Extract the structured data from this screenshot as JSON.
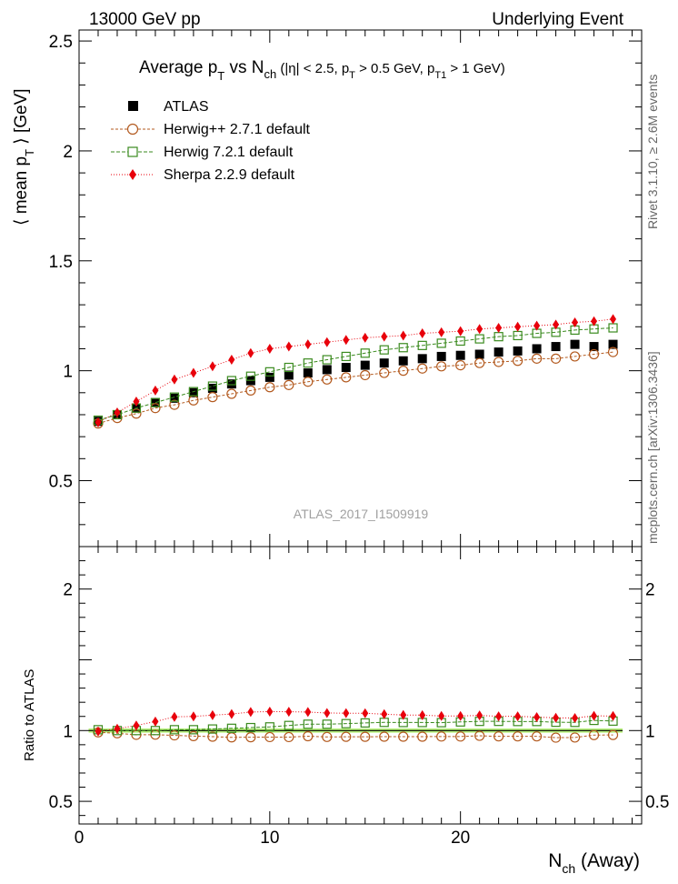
{
  "header": {
    "energy": "13000 GeV pp",
    "category": "Underlying Event"
  },
  "side_labels": {
    "rivet": "Rivet 3.1.10, ≥ 2.6M events",
    "mcplots": "mcplots.cern.ch [arXiv:1306.3436]"
  },
  "watermark": "ATLAS_2017_I1509919",
  "title": {
    "main": "Average p",
    "main_sub": "T",
    "vs": " vs N",
    "vs_sub": "ch",
    "cuts_a": " (|η| < 2.5, p",
    "cuts_a_sub": "T",
    "cuts_b": " > 0.5 GeV, p",
    "cuts_b_sub": "T1",
    "cuts_c": " > 1 GeV)"
  },
  "ylabel_main": {
    "a": "⟨ mean p",
    "sub": "T",
    "b": " ⟩ [GeV]"
  },
  "ylabel_ratio": "Ratio to ATLAS",
  "xlabel": {
    "a": "N",
    "sub": "ch",
    "b": " (Away)"
  },
  "colors": {
    "atlas": "#000000",
    "herwigpp": "#b35a1f",
    "herwig7": "#3a8a1e",
    "sherpa": "#e8000b",
    "band": "#b6f07a"
  },
  "chart_data": [
    {
      "type": "scatter",
      "panel": "main",
      "title": "Average pT vs Nch (|η| < 2.5, pT > 0.5 GeV, pT1 > 1 GeV)",
      "xlabel": "Nch (Away)",
      "ylabel": "⟨ mean pT ⟩ [GeV]",
      "xlim": [
        0,
        29.5
      ],
      "ylim": [
        0.2,
        2.55
      ],
      "x_ticks": [
        "0",
        "10",
        "20"
      ],
      "y_ticks": [
        "0.5",
        "1",
        "1.5",
        "2",
        "2.5"
      ],
      "x": [
        1,
        2,
        3,
        4,
        5,
        6,
        7,
        8,
        9,
        10,
        11,
        12,
        13,
        14,
        15,
        16,
        17,
        18,
        19,
        20,
        21,
        22,
        23,
        24,
        25,
        26,
        27,
        28
      ],
      "legend_position": "top-left",
      "series": [
        {
          "name": "ATLAS",
          "key": "atlas",
          "marker": "square",
          "values": [
            0.77,
            0.8,
            0.83,
            0.855,
            0.875,
            0.9,
            0.92,
            0.94,
            0.955,
            0.97,
            0.98,
            0.99,
            1.005,
            1.015,
            1.025,
            1.035,
            1.045,
            1.055,
            1.065,
            1.07,
            1.075,
            1.085,
            1.09,
            1.1,
            1.11,
            1.12,
            1.11,
            1.12
          ]
        },
        {
          "name": "Herwig++ 2.7.1 default",
          "key": "herwigpp",
          "marker": "open-circle",
          "values": [
            0.76,
            0.785,
            0.805,
            0.83,
            0.845,
            0.865,
            0.88,
            0.895,
            0.91,
            0.925,
            0.935,
            0.95,
            0.96,
            0.97,
            0.98,
            0.99,
            1.0,
            1.01,
            1.02,
            1.025,
            1.035,
            1.04,
            1.045,
            1.055,
            1.055,
            1.065,
            1.075,
            1.085
          ]
        },
        {
          "name": "Herwig 7.2.1 default",
          "key": "herwig7",
          "marker": "open-square",
          "values": [
            0.775,
            0.8,
            0.83,
            0.855,
            0.88,
            0.905,
            0.93,
            0.955,
            0.975,
            0.995,
            1.015,
            1.035,
            1.05,
            1.065,
            1.08,
            1.095,
            1.105,
            1.115,
            1.125,
            1.135,
            1.145,
            1.155,
            1.16,
            1.17,
            1.175,
            1.185,
            1.19,
            1.195
          ]
        },
        {
          "name": "Sherpa 2.2.9 default",
          "key": "sherpa",
          "marker": "diamond",
          "values": [
            0.765,
            0.81,
            0.86,
            0.91,
            0.96,
            0.99,
            1.02,
            1.05,
            1.08,
            1.1,
            1.11,
            1.12,
            1.13,
            1.14,
            1.15,
            1.155,
            1.16,
            1.17,
            1.175,
            1.18,
            1.19,
            1.195,
            1.2,
            1.205,
            1.21,
            1.22,
            1.225,
            1.235
          ]
        }
      ]
    },
    {
      "type": "scatter",
      "panel": "ratio",
      "ylabel": "Ratio to ATLAS",
      "xlim": [
        0,
        29.5
      ],
      "ylim": [
        0.34,
        2.3
      ],
      "x_ticks": [
        "0",
        "10",
        "20"
      ],
      "y_ticks": [
        "0.5",
        "1",
        "2"
      ],
      "x": [
        1,
        2,
        3,
        4,
        5,
        6,
        7,
        8,
        9,
        10,
        11,
        12,
        13,
        14,
        15,
        16,
        17,
        18,
        19,
        20,
        21,
        22,
        23,
        24,
        25,
        26,
        27,
        28
      ],
      "reference_band": [
        0.985,
        1.015
      ],
      "series": [
        {
          "name": "Herwig++ 2.7.1 default",
          "key": "herwigpp",
          "marker": "open-circle",
          "values": [
            0.987,
            0.981,
            0.97,
            0.971,
            0.966,
            0.961,
            0.957,
            0.952,
            0.953,
            0.954,
            0.954,
            0.96,
            0.955,
            0.956,
            0.956,
            0.957,
            0.957,
            0.957,
            0.958,
            0.958,
            0.963,
            0.959,
            0.959,
            0.959,
            0.95,
            0.951,
            0.968,
            0.969
          ]
        },
        {
          "name": "Herwig 7.2.1 default",
          "key": "herwig7",
          "marker": "open-square",
          "values": [
            1.006,
            1.0,
            1.0,
            1.0,
            1.006,
            1.006,
            1.011,
            1.016,
            1.021,
            1.026,
            1.036,
            1.045,
            1.045,
            1.049,
            1.054,
            1.058,
            1.057,
            1.057,
            1.056,
            1.061,
            1.065,
            1.065,
            1.064,
            1.064,
            1.059,
            1.058,
            1.072,
            1.067
          ]
        },
        {
          "name": "Sherpa 2.2.9 default",
          "key": "sherpa",
          "marker": "diamond",
          "values": [
            0.994,
            1.013,
            1.036,
            1.064,
            1.097,
            1.1,
            1.109,
            1.117,
            1.131,
            1.134,
            1.133,
            1.131,
            1.124,
            1.123,
            1.122,
            1.116,
            1.11,
            1.109,
            1.103,
            1.103,
            1.107,
            1.101,
            1.101,
            1.095,
            1.09,
            1.089,
            1.104,
            1.103
          ]
        }
      ]
    }
  ]
}
